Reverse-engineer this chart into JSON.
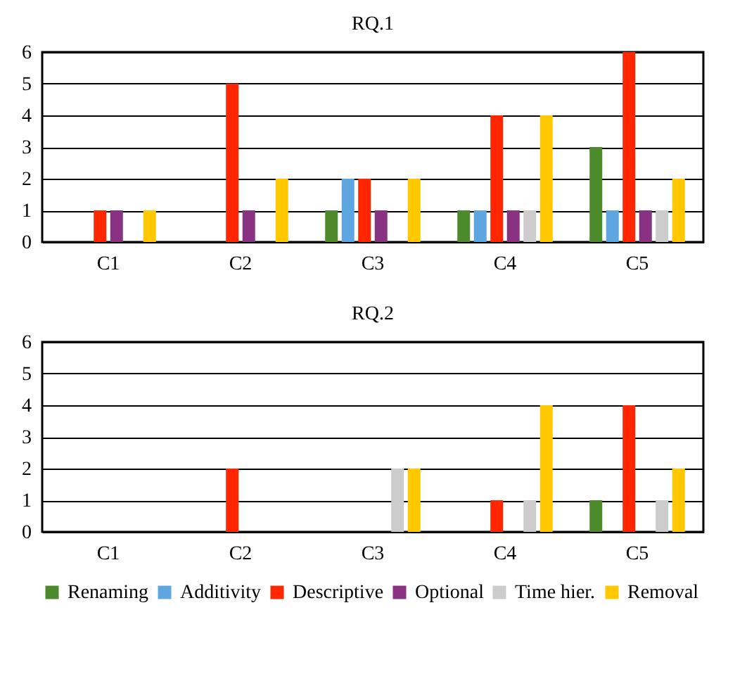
{
  "chart_data": [
    {
      "type": "bar",
      "title": "RQ.1",
      "categories": [
        "C1",
        "C2",
        "C3",
        "C4",
        "C5"
      ],
      "ylim": [
        0,
        6
      ],
      "yticks": [
        0,
        1,
        2,
        3,
        4,
        5,
        6
      ],
      "grid": "y",
      "legend": false,
      "series": [
        {
          "color": "#4c8a2c",
          "values": [
            0,
            0,
            1,
            1,
            3
          ]
        },
        {
          "color": "#5ea6e0",
          "values": [
            0,
            0,
            2,
            1,
            1
          ]
        },
        {
          "color": "#ff2600",
          "values": [
            1,
            5,
            2,
            4,
            6
          ]
        },
        {
          "color": "#8a3282",
          "values": [
            1,
            1,
            1,
            1,
            1
          ]
        },
        {
          "color": "#cccccc",
          "values": [
            0,
            0,
            0,
            1,
            1
          ]
        },
        {
          "color": "#ffc800",
          "values": [
            1,
            2,
            2,
            4,
            2
          ]
        }
      ]
    },
    {
      "type": "bar",
      "title": "RQ.2",
      "categories": [
        "C1",
        "C2",
        "C3",
        "C4",
        "C5"
      ],
      "ylim": [
        0,
        6
      ],
      "yticks": [
        0,
        1,
        2,
        3,
        4,
        5,
        6
      ],
      "grid": "y",
      "legend": "bottom",
      "series": [
        {
          "name": "Renaming",
          "color": "#4c8a2c",
          "values": [
            0,
            0,
            0,
            0,
            1
          ]
        },
        {
          "name": "Additivity",
          "color": "#5ea6e0",
          "values": [
            0,
            0,
            0,
            0,
            0
          ]
        },
        {
          "name": "Descriptive",
          "color": "#ff2600",
          "values": [
            0,
            2,
            0,
            1,
            4
          ]
        },
        {
          "name": "Optional",
          "color": "#8a3282",
          "values": [
            0,
            0,
            0,
            0,
            0
          ]
        },
        {
          "name": "Time hier.",
          "color": "#cccccc",
          "values": [
            0,
            0,
            2,
            1,
            1
          ]
        },
        {
          "name": "Removal",
          "color": "#ffc800",
          "values": [
            0,
            0,
            2,
            4,
            2
          ]
        }
      ]
    }
  ]
}
